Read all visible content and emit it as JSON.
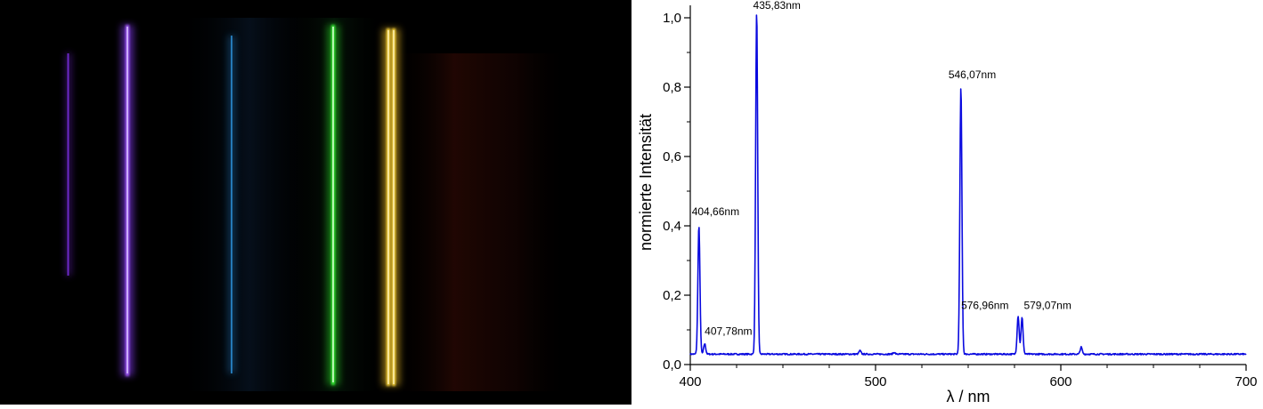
{
  "colors": {
    "photo_background": "#000000",
    "series": "#0a0adf",
    "axis": "#000000",
    "line_violet_faint": "#7a2fe0",
    "line_violet": "#9a4cff",
    "line_cyan": "#2c8fd6",
    "line_green": "#39f238",
    "line_yellow": "#ffe44a",
    "glow_red": "#5a1508"
  },
  "spectrum_photo": {
    "description_lines": [
      {
        "color_key": "line_violet_faint",
        "nm": 404.66
      },
      {
        "color_key": "line_violet",
        "nm": 435.83
      },
      {
        "color_key": "line_cyan",
        "nm": 491.6
      },
      {
        "color_key": "line_green",
        "nm": 546.07
      },
      {
        "color_key": "line_yellow",
        "nm": 576.96
      },
      {
        "color_key": "line_yellow",
        "nm": 579.07
      }
    ]
  },
  "chart_data": {
    "type": "line",
    "title": "",
    "xlabel": "λ / nm",
    "ylabel": "normierte Intensität",
    "xlim": [
      400,
      700
    ],
    "ylim": [
      0,
      1.0
    ],
    "x_ticks": [
      400,
      500,
      600,
      700
    ],
    "x_tick_labels": [
      "400",
      "500",
      "600",
      "700"
    ],
    "y_ticks": [
      0,
      0.2,
      0.4,
      0.6,
      0.8,
      1.0
    ],
    "y_tick_labels": [
      "0,0",
      "0,2",
      "0,4",
      "0,6",
      "0,8",
      "1,0"
    ],
    "grid": false,
    "baseline": 0.03,
    "peaks": [
      {
        "x": 404.66,
        "y": 0.4
      },
      {
        "x": 407.78,
        "y": 0.06
      },
      {
        "x": 435.83,
        "y": 1.02
      },
      {
        "x": 491.6,
        "y": 0.04
      },
      {
        "x": 510.0,
        "y": 0.035
      },
      {
        "x": 546.07,
        "y": 0.8
      },
      {
        "x": 576.96,
        "y": 0.14
      },
      {
        "x": 579.07,
        "y": 0.135
      },
      {
        "x": 611.0,
        "y": 0.05
      }
    ],
    "annotations": [
      {
        "text": "404,66nm",
        "x": 404.66,
        "y": 0.4
      },
      {
        "text": "407,78nm",
        "x": 407.78,
        "y": 0.06
      },
      {
        "text": "435,83nm",
        "x": 435.83,
        "y": 1.02
      },
      {
        "text": "546,07nm",
        "x": 546.07,
        "y": 0.8
      },
      {
        "text": "576,96nm",
        "x": 576.96,
        "y": 0.14
      },
      {
        "text": "579,07nm",
        "x": 579.07,
        "y": 0.14
      }
    ]
  }
}
